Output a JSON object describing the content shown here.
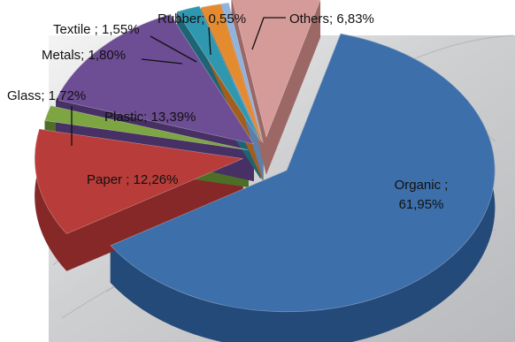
{
  "chart_data": {
    "type": "pie",
    "title": "",
    "style": "3d-exploded",
    "slices": [
      {
        "name": "Organic",
        "value": 61.95,
        "label": "Organic ;",
        "label_value": "61,95%",
        "color": "#3d6faa",
        "side_color": "#244a7a"
      },
      {
        "name": "Paper",
        "value": 12.26,
        "label": "Paper ; 12,26%",
        "color": "#b83c39",
        "side_color": "#852827"
      },
      {
        "name": "Glass",
        "value": 1.72,
        "label": "Glass; 1,72%",
        "color": "#7da541",
        "side_color": "#4e6e27"
      },
      {
        "name": "Plastic",
        "value": 13.39,
        "label": "Plastic; 13,39%",
        "color": "#6d4d94",
        "side_color": "#463064"
      },
      {
        "name": "Metals",
        "value": 1.8,
        "label": "Metals; 1,80%",
        "color": "#2f97af",
        "side_color": "#1d6475"
      },
      {
        "name": "Textile",
        "value": 1.55,
        "label": "Textile ; 1,55%",
        "color": "#e48a2f",
        "side_color": "#a15e1c"
      },
      {
        "name": "Rubber",
        "value": 0.55,
        "label": "Rubber; 0,55%",
        "color": "#8fb3de",
        "side_color": "#5f7fa8"
      },
      {
        "name": "Others",
        "value": 6.83,
        "label": "Others; 6,83%",
        "color": "#d59b98",
        "side_color": "#9c6866"
      }
    ]
  }
}
